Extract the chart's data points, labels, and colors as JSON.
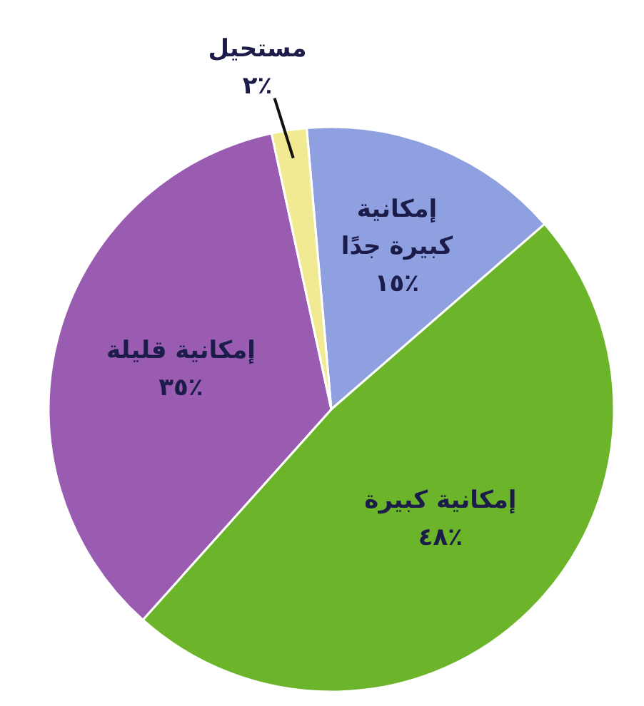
{
  "chart_data": {
    "type": "pie",
    "categories": [
      "إمكانية كبيرة جدًا",
      "إمكانية كبيرة",
      "إمكانية قليلة",
      "مستحيل"
    ],
    "values": [
      15,
      48,
      35,
      2
    ],
    "colors": [
      "#8fa0e0",
      "#6cb42a",
      "#9a5cb0",
      "#f2ea92"
    ],
    "value_labels": [
      "٪١٥",
      "٪٤٨",
      "٪٣٥",
      "٪٢"
    ]
  }
}
